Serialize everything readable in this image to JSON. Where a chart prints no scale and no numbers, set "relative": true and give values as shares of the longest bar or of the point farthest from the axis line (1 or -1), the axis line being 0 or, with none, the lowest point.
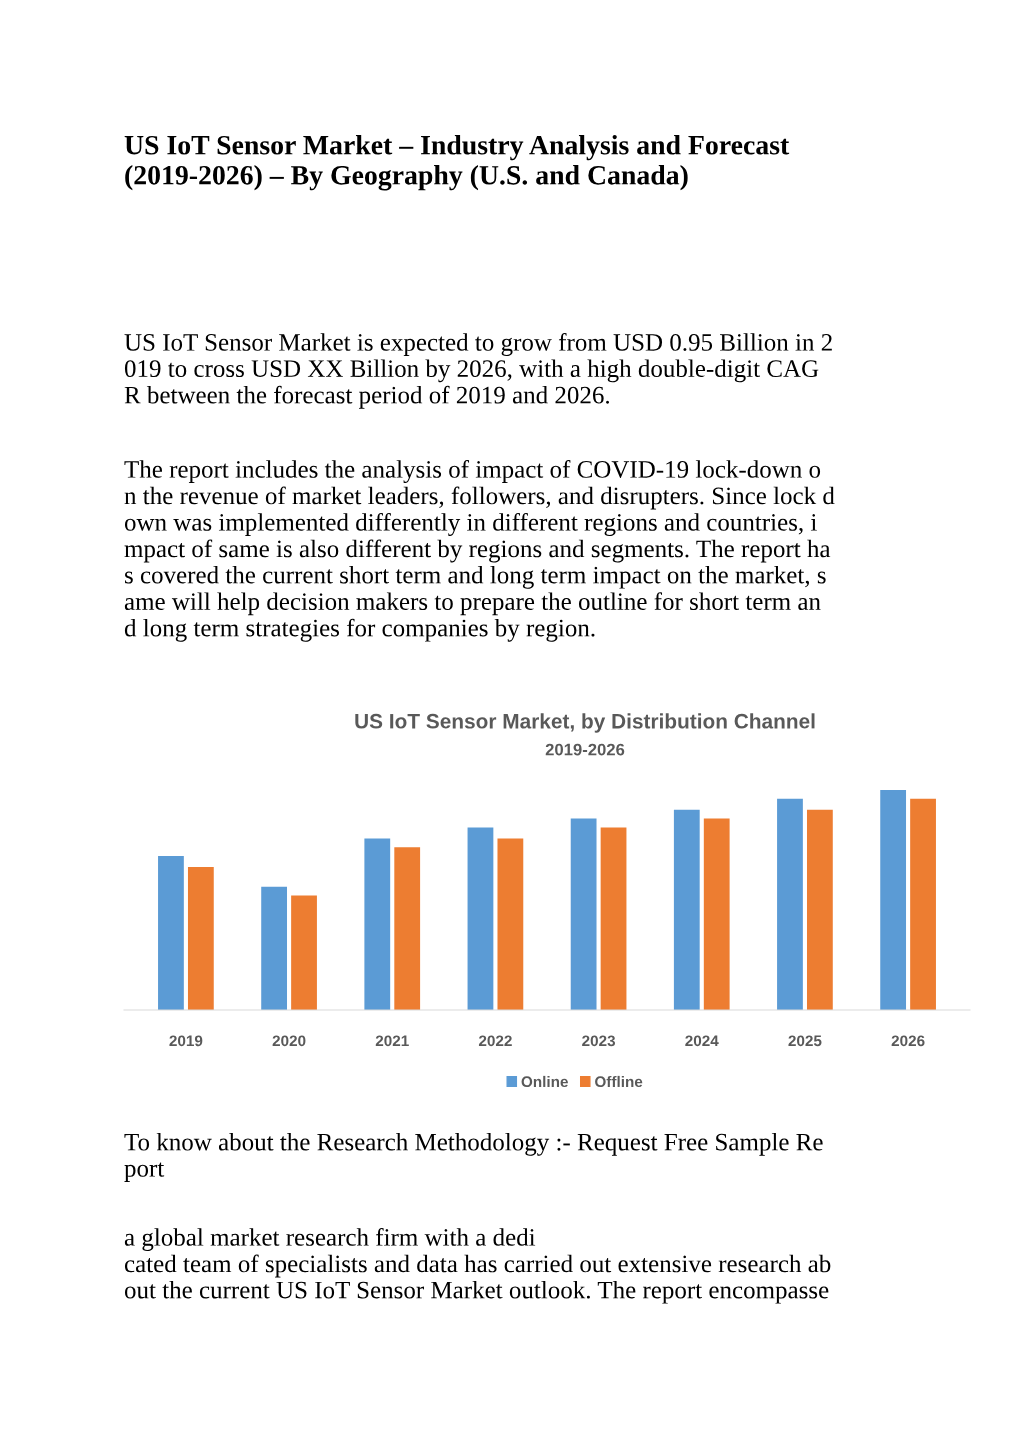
{
  "chart_data": {
    "type": "bar",
    "title": "US IoT Sensor Market, by Distribution Channel",
    "subtitle": "2019-2026",
    "categories": [
      "2019",
      "2020",
      "2021",
      "2022",
      "2023",
      "2024",
      "2025",
      "2026"
    ],
    "relative": true,
    "series": [
      {
        "name": "Online",
        "color": "#5b9bd5",
        "values": [
          0.7,
          0.56,
          0.78,
          0.83,
          0.87,
          0.91,
          0.96,
          1.0
        ]
      },
      {
        "name": "Offline",
        "color": "#ed7d31",
        "values": [
          0.65,
          0.52,
          0.74,
          0.78,
          0.83,
          0.87,
          0.91,
          0.96
        ]
      }
    ],
    "legend": "bottom",
    "grid": false,
    "annotations": [
      "US IoT Sensor Market – Industry Analysis and Forecast\n(2019-2026) – By Geography (U.S. and Canada)",
      "US IoT Sensor Market is expected to grow from USD 0.95 Billion in 2\n019 to cross USD XX Billion by 2026, with a high double-digit CAG\nR between the forecast period of 2019 and 2026.",
      "The report includes the analysis of impact of COVID-19 lock-down o\nn the revenue of market leaders, followers, and disrupters. Since lock d\nown was implemented differently in different regions and countries, i\nmpact of same is also different by regions and segments. The report ha\ns covered the current short term and long term impact on the market, s\name will help decision makers to prepare the outline for short term an\nd long term strategies for companies by region.",
      "To know about the Research Methodology :- Request Free Sample Re\nport",
      "a global market research firm with a dedi\ncated team of specialists and data has carried out extensive research ab\nout the current US IoT Sensor Market outlook. The report encompasse"
    ]
  }
}
